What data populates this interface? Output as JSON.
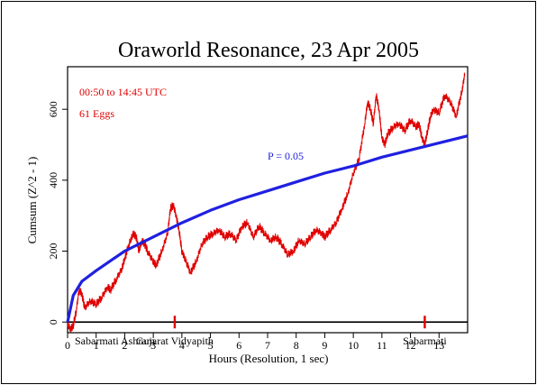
{
  "chart_data": {
    "type": "line",
    "title": "Oraworld Resonance, 23 Apr 2005",
    "xlabel": "Hours (Resolution, 1 sec)",
    "ylabel": "Cumsum (Z^2 - 1)",
    "xlim": [
      0,
      14
    ],
    "ylim": [
      -30,
      720
    ],
    "x_ticks": [
      0,
      1,
      2,
      3,
      4,
      5,
      6,
      7,
      8,
      9,
      10,
      11,
      12,
      13
    ],
    "y_ticks": [
      0,
      200,
      400,
      600
    ],
    "annotations": {
      "time_range": "00:50 to 14:45 UTC",
      "eggs": "61 Eggs",
      "p_label": "P = 0.05"
    },
    "events": [
      {
        "label": "Sabarmati Ashram",
        "x": 0.3
      },
      {
        "label": "Gujarat Vidyapith",
        "x": 3.75
      },
      {
        "label": "Sabarmati",
        "x": 12.5
      }
    ],
    "series": [
      {
        "color": "#e00000",
        "x": [
          0,
          0.1,
          0.2,
          0.3,
          0.4,
          0.5,
          0.6,
          0.8,
          1.0,
          1.2,
          1.4,
          1.5,
          1.7,
          1.9,
          2.0,
          2.2,
          2.3,
          2.4,
          2.5,
          2.6,
          2.7,
          2.8,
          3.0,
          3.1,
          3.3,
          3.5,
          3.6,
          3.7,
          3.8,
          3.9,
          4.0,
          4.1,
          4.3,
          4.5,
          4.7,
          4.9,
          5.1,
          5.3,
          5.5,
          5.7,
          5.9,
          6.1,
          6.3,
          6.5,
          6.7,
          6.9,
          7.1,
          7.3,
          7.5,
          7.7,
          7.9,
          8.1,
          8.3,
          8.5,
          8.7,
          8.9,
          9.0,
          9.2,
          9.4,
          9.6,
          9.8,
          10.0,
          10.2,
          10.4,
          10.5,
          10.6,
          10.7,
          10.8,
          10.9,
          11.0,
          11.1,
          11.2,
          11.4,
          11.6,
          11.8,
          12.0,
          12.2,
          12.3,
          12.4,
          12.5,
          12.6,
          12.7,
          12.8,
          13.0,
          13.2,
          13.4,
          13.6,
          13.8,
          13.9
        ],
        "values": [
          -5,
          -20,
          -10,
          30,
          90,
          80,
          40,
          60,
          50,
          70,
          100,
          90,
          120,
          150,
          180,
          230,
          250,
          240,
          200,
          230,
          220,
          200,
          170,
          160,
          200,
          250,
          320,
          330,
          300,
          260,
          200,
          180,
          140,
          170,
          220,
          240,
          250,
          260,
          240,
          250,
          230,
          270,
          280,
          240,
          270,
          250,
          230,
          240,
          220,
          190,
          200,
          230,
          220,
          240,
          260,
          250,
          240,
          260,
          280,
          320,
          360,
          420,
          460,
          560,
          620,
          600,
          560,
          640,
          600,
          520,
          500,
          530,
          550,
          560,
          540,
          570,
          550,
          560,
          520,
          500,
          540,
          580,
          600,
          590,
          640,
          620,
          580,
          650,
          700
        ]
      },
      {
        "name": "P = 0.05",
        "color": "#2020e0",
        "x": [
          0,
          0.2,
          0.5,
          1,
          2,
          3,
          4,
          5,
          6,
          7,
          8,
          9,
          10,
          11,
          12,
          13,
          14
        ],
        "values": [
          0,
          75,
          115,
          145,
          200,
          240,
          280,
          315,
          345,
          370,
          395,
          420,
          440,
          465,
          485,
          505,
          525
        ]
      }
    ],
    "grid": false
  }
}
